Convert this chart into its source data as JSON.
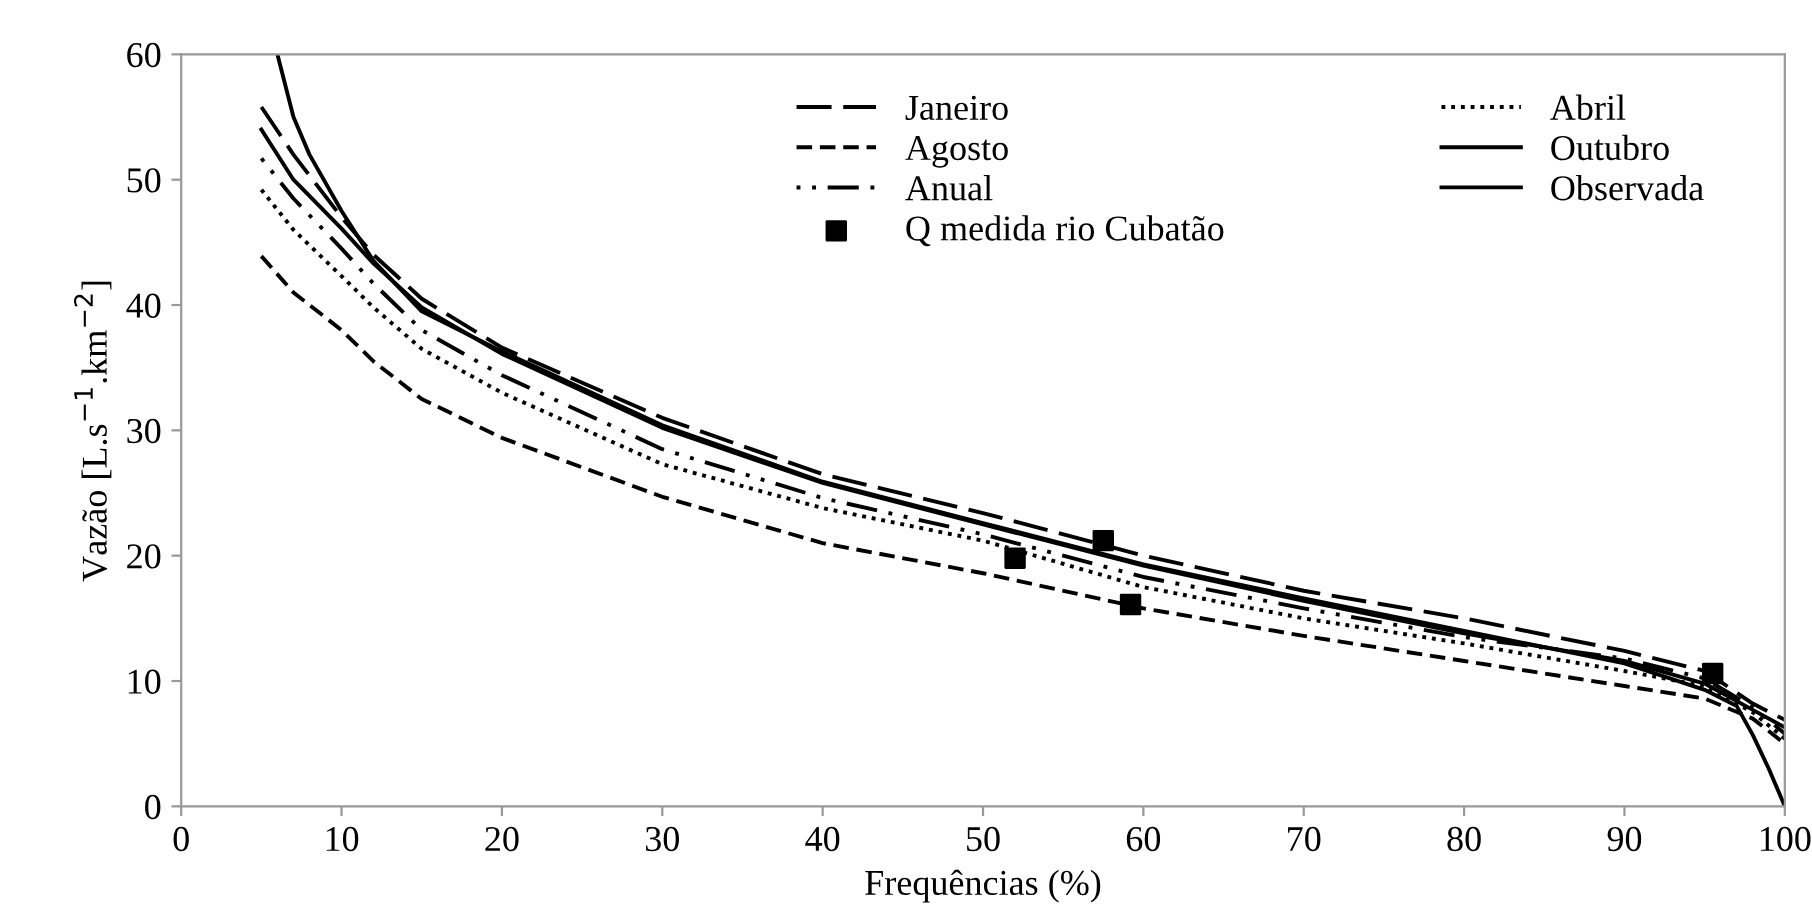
{
  "chart_data": {
    "type": "line",
    "xlabel": "Frequências (%)",
    "ylabel": "Vazão [L.s$^{−1}$.km$^{−2}$]",
    "xlim": [
      0,
      100
    ],
    "ylim": [
      0,
      60
    ],
    "xticks": [
      0,
      10,
      20,
      30,
      40,
      50,
      60,
      70,
      80,
      90,
      100
    ],
    "yticks": [
      0,
      10,
      20,
      30,
      40,
      50,
      60
    ],
    "grid": false,
    "legend": "top right",
    "marker": "none",
    "series": [
      {
        "name": "Janeiro",
        "color": "#000000",
        "line_style": "long_dash",
        "x": [
          5,
          7,
          10,
          12,
          15,
          20,
          30,
          40,
          50,
          60,
          70,
          80,
          90,
          95,
          98,
          100
        ],
        "values": [
          55.8,
          52,
          47,
          44,
          40.5,
          36.6,
          31,
          26.5,
          23.4,
          20,
          17.2,
          15,
          12.4,
          10.8,
          8.2,
          6.9
        ]
      },
      {
        "name": "Abril",
        "color": "#000000",
        "line_style": "dotted",
        "x": [
          5,
          7,
          10,
          12,
          15,
          20,
          30,
          40,
          50,
          60,
          70,
          80,
          90,
          95,
          98,
          100
        ],
        "values": [
          49.2,
          46,
          42.3,
          39.8,
          36.5,
          33,
          27.3,
          23.8,
          21.2,
          17.5,
          15,
          13,
          10.8,
          9.6,
          7.5,
          5.4
        ]
      },
      {
        "name": "Agosto",
        "color": "#000000",
        "line_style": "dashed",
        "x": [
          5,
          7,
          10,
          12,
          15,
          20,
          30,
          40,
          50,
          60,
          70,
          80,
          90,
          95,
          98,
          100
        ],
        "values": [
          43.9,
          41,
          38,
          35.5,
          32.5,
          29.4,
          24.7,
          21,
          18.6,
          15.8,
          13.6,
          11.6,
          9.6,
          8.6,
          7,
          5
        ]
      },
      {
        "name": "Outubro",
        "color": "#000000",
        "line_style": "solid",
        "x": [
          5,
          7,
          10,
          12,
          15,
          20,
          30,
          40,
          50,
          60,
          70,
          80,
          90,
          95,
          98,
          100
        ],
        "values": [
          54,
          50,
          46.1,
          43.3,
          39.8,
          36.1,
          30.2,
          25.8,
          22.5,
          19.2,
          16.4,
          13.8,
          11.6,
          9.8,
          7.7,
          6.3
        ]
      },
      {
        "name": "Anual",
        "color": "#000000",
        "line_style": "dashdot",
        "x": [
          5,
          7,
          10,
          12,
          15,
          20,
          30,
          40,
          50,
          60,
          70,
          80,
          90,
          95,
          98,
          100
        ],
        "values": [
          51.7,
          48.5,
          44.5,
          41.7,
          38,
          34.4,
          28.5,
          24.6,
          21.7,
          18.3,
          15.8,
          13.5,
          11.8,
          10.2,
          7.9,
          5.8
        ]
      },
      {
        "name": "Observada",
        "color": "#000000",
        "line_style": "solid",
        "x": [
          6,
          7,
          8,
          10,
          12,
          15,
          20,
          30,
          40,
          50,
          60,
          70,
          80,
          90,
          95,
          97,
          98,
          99,
          99.5,
          100
        ],
        "values": [
          60,
          55,
          52,
          47.5,
          43.5,
          39.5,
          36.3,
          30.4,
          25.9,
          22.6,
          19.3,
          16.6,
          14,
          11.4,
          9.3,
          8,
          5.7,
          3,
          1.5,
          0
        ]
      },
      {
        "name": "Q medida rio Cubatão",
        "type": "scatter",
        "marker": "square",
        "color": "#000000",
        "x": [
          52,
          57.5,
          59.2,
          95.5
        ],
        "values": [
          19.8,
          21.2,
          16.1,
          10.6
        ]
      }
    ]
  }
}
